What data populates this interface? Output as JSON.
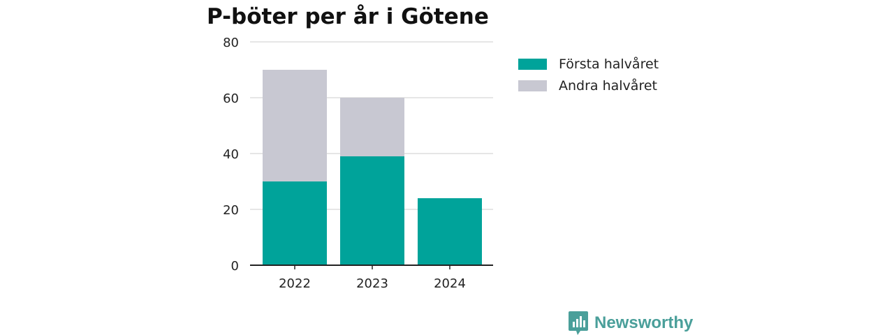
{
  "colors": {
    "series_first": "#00a39a",
    "series_second": "#c8c8d2",
    "gridline": "#dddddd",
    "axis": "#222222",
    "brand": "#4a9f9a"
  },
  "brand": {
    "name": "Newsworthy",
    "logo_icon": "bar-chart-speech-bubble-icon"
  },
  "chart_data": {
    "type": "bar",
    "stacked": true,
    "title": "P-böter per år i Götene",
    "xlabel": "",
    "ylabel": "",
    "categories": [
      "2022",
      "2023",
      "2024"
    ],
    "series": [
      {
        "name": "Första halvåret",
        "values": [
          30,
          39,
          24
        ]
      },
      {
        "name": "Andra halvåret",
        "values": [
          40,
          21,
          0
        ]
      }
    ],
    "ylim": [
      0,
      80
    ],
    "yticks": [
      0,
      20,
      40,
      60,
      80
    ],
    "grid": true,
    "legend_position": "right"
  }
}
